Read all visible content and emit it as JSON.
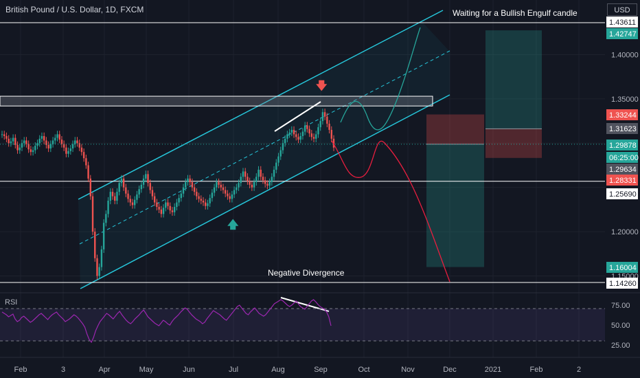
{
  "header": {
    "symbol": "British Pound / U.S. Dollar, 1D, FXCM",
    "currency": "USD"
  },
  "colors": {
    "background": "#131722",
    "grid": "#1e222d",
    "channel": "#26c6da",
    "up": "#26a69a",
    "down": "#ef5350",
    "rsi": "#9c27b0",
    "projection_bear": "#e91e3f",
    "projection_bull": "#26a69a"
  },
  "annotations": {
    "bullish_note": "Waiting for a Bullish Engulf candle",
    "divergence_note": "Negative Divergence"
  },
  "icons": {
    "down_arrow": "arrow-down-icon",
    "up_arrow": "arrow-up-icon"
  },
  "rsi": {
    "label": "RSI",
    "levels": [
      "75.00",
      "50.00",
      "25.00"
    ],
    "values": [
      62,
      60,
      58,
      55,
      57,
      59,
      52,
      48,
      50,
      54,
      56,
      53,
      50,
      47,
      49,
      52,
      55,
      58,
      60,
      57,
      54,
      51,
      55,
      58,
      60,
      62,
      58,
      55,
      52,
      48,
      50,
      52,
      55,
      58,
      56,
      53,
      49,
      45,
      40,
      30,
      22,
      18,
      25,
      35,
      42,
      48,
      52,
      56,
      60,
      58,
      55,
      52,
      56,
      60,
      63,
      58,
      54,
      50,
      47,
      45,
      48,
      52,
      55,
      58,
      62,
      65,
      60,
      55,
      52,
      49,
      46,
      44,
      42,
      46,
      50,
      48,
      45,
      43,
      48,
      52,
      55,
      58,
      62,
      65,
      68,
      66,
      62,
      58,
      55,
      52,
      50,
      48,
      45,
      47,
      52,
      56,
      60,
      64,
      62,
      60,
      58,
      55,
      52,
      50,
      54,
      58,
      62,
      66,
      70,
      72,
      68,
      64,
      60,
      58,
      62,
      65,
      68,
      64,
      60,
      58,
      56,
      58,
      62,
      66,
      70,
      74,
      76,
      78,
      80,
      78,
      75,
      72,
      70,
      72,
      75,
      78,
      74,
      70,
      68,
      66,
      70,
      74,
      78,
      80,
      77,
      73,
      70,
      68,
      66,
      62,
      55,
      42
    ]
  },
  "projection": {
    "entry_label": "1.29878",
    "levels": [
      "1.33244",
      "1.31623",
      "1.29878",
      "1.29634",
      "1.28331"
    ]
  },
  "chart_data": {
    "type": "candlestick",
    "title": "British Pound / U.S. Dollar, 1D, FXCM",
    "x_ticks": [
      "Feb",
      "3",
      "Apr",
      "May",
      "Jun",
      "Jul",
      "Aug",
      "Sep",
      "Oct",
      "Nov",
      "Dec",
      "2021",
      "Feb",
      "2"
    ],
    "y_ticks": [
      "1.40000",
      "1.35000",
      "1.20000",
      "1.15000"
    ],
    "ylim": [
      1.13,
      1.46
    ],
    "close_series": [
      1.31,
      1.308,
      1.305,
      1.3,
      1.302,
      1.306,
      1.298,
      1.292,
      1.295,
      1.3,
      1.303,
      1.299,
      1.293,
      1.29,
      1.292,
      1.297,
      1.3,
      1.305,
      1.308,
      1.303,
      1.298,
      1.294,
      1.299,
      1.303,
      1.306,
      1.31,
      1.304,
      1.299,
      1.295,
      1.288,
      1.291,
      1.294,
      1.299,
      1.303,
      1.3,
      1.295,
      1.29,
      1.283,
      1.275,
      1.26,
      1.24,
      1.2,
      1.17,
      1.15,
      1.16,
      1.18,
      1.21,
      1.22,
      1.235,
      1.245,
      1.24,
      1.235,
      1.245,
      1.255,
      1.26,
      1.25,
      1.243,
      1.237,
      1.233,
      1.23,
      1.236,
      1.242,
      1.248,
      1.253,
      1.26,
      1.265,
      1.255,
      1.247,
      1.24,
      1.233,
      1.228,
      1.225,
      1.22,
      1.227,
      1.233,
      1.229,
      1.224,
      1.222,
      1.228,
      1.233,
      1.238,
      1.243,
      1.25,
      1.256,
      1.26,
      1.256,
      1.25,
      1.245,
      1.24,
      1.237,
      1.235,
      1.233,
      1.229,
      1.232,
      1.238,
      1.244,
      1.25,
      1.256,
      1.253,
      1.25,
      1.247,
      1.243,
      1.24,
      1.237,
      1.242,
      1.247,
      1.25,
      1.255,
      1.262,
      1.268,
      1.262,
      1.257,
      1.253,
      1.25,
      1.256,
      1.262,
      1.27,
      1.262,
      1.258,
      1.254,
      1.252,
      1.256,
      1.262,
      1.27,
      1.278,
      1.285,
      1.292,
      1.3,
      1.305,
      1.31,
      1.312,
      1.315,
      1.31,
      1.307,
      1.304,
      1.308,
      1.313,
      1.32,
      1.316,
      1.311,
      1.307,
      1.305,
      1.31,
      1.318,
      1.325,
      1.335,
      1.33,
      1.322,
      1.315,
      1.305,
      1.295
    ],
    "price_labels": [
      {
        "value": 1.43611,
        "label": "1.43611",
        "style": "white"
      },
      {
        "value": 1.42747,
        "label": "1.42747",
        "style": "teal"
      },
      {
        "value": 1.33244,
        "label": "1.33244",
        "style": "red"
      },
      {
        "value": 1.31623,
        "label": "1.31623",
        "style": "gray"
      },
      {
        "value": 1.29878,
        "label": "1.29878",
        "style": "teal"
      },
      {
        "value": 1.29,
        "label": "06:25:00",
        "style": "teal"
      },
      {
        "value": 1.29634,
        "label": "1.29634",
        "style": "gray"
      },
      {
        "value": 1.28331,
        "label": "1.28331",
        "style": "red"
      },
      {
        "value": 1.2569,
        "label": "1.25690",
        "style": "white"
      },
      {
        "value": 1.16004,
        "label": "1.16004",
        "style": "teal"
      },
      {
        "value": 1.1426,
        "label": "1.14260",
        "style": "white"
      }
    ],
    "horizontal_levels": [
      1.43611,
      1.2569,
      1.1426
    ],
    "resistance_zone": [
      1.342,
      1.353
    ],
    "grid": true
  }
}
